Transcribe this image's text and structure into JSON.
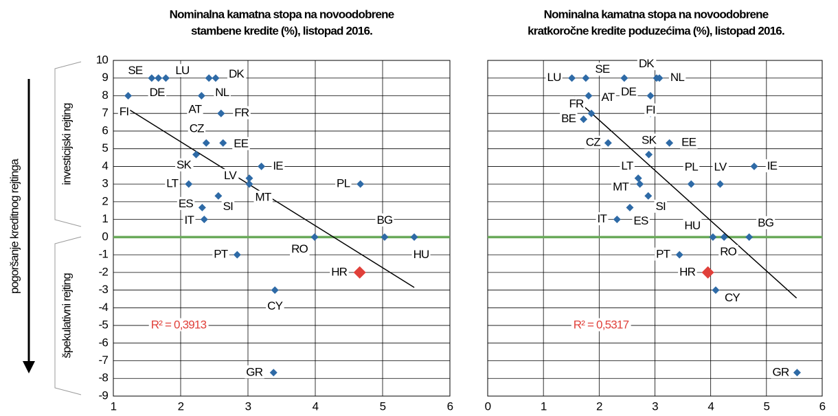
{
  "annotations": {
    "axis_arrow": "pogoršanje kreditnog rejtinga",
    "upper": "investicijski rejting",
    "lower": "špekulativni rejting"
  },
  "chart_data": [
    {
      "type": "scatter",
      "title": [
        "Nominalna kamatna stopa na novoodobrene",
        "stambene kredite (%), listopad 2016."
      ],
      "x": [
        1.57,
        1.67,
        1.78,
        2.42,
        2.52,
        1.22,
        2.31,
        2.6,
        2.6,
        2.38,
        2.63,
        2.23,
        3.2,
        2.12,
        3.02,
        3.02,
        4.67,
        2.32,
        2.56,
        2.35,
        3.99,
        5.03,
        5.47,
        2.84,
        4.66,
        3.4,
        3.38
      ],
      "y": [
        9,
        9,
        9,
        9,
        9,
        8,
        8,
        7,
        7,
        5.33,
        5.33,
        4.67,
        4,
        3,
        3.33,
        3,
        3,
        1.67,
        2.33,
        1,
        0,
        0,
        0,
        -1,
        -2,
        -3,
        -7.67
      ],
      "labels": [
        "SE",
        "DE",
        "LU",
        null,
        "DK",
        "FI",
        "NL",
        "AT",
        "FR",
        "CZ",
        "EE",
        "SK",
        "IE",
        "LT",
        "LV",
        "MT",
        "PL",
        "ES",
        "SI",
        "IT",
        "RO",
        "BG",
        "HU",
        "PT",
        "HR",
        "CY",
        "GR"
      ],
      "color": "#2e6aa6",
      "highlight_index": 24,
      "highlight_color": "#e0403a",
      "trendline": {
        "x": [
          1.22,
          5.47
        ],
        "y": [
          7.25,
          -2.85
        ],
        "color": "#000"
      },
      "r2_label": "R² = 0,3913",
      "r2_color": "#e0403a",
      "reference_line": {
        "y": 0,
        "color": "#6aaa5a"
      },
      "xlim": [
        1,
        6
      ],
      "xticks": [
        1,
        2,
        3,
        4,
        5,
        6
      ],
      "ylim": [
        -9,
        10
      ],
      "yticks": [
        -9,
        -8,
        -7,
        -6,
        -5,
        -4,
        -3,
        -2,
        -1,
        0,
        1,
        2,
        3,
        4,
        5,
        6,
        7,
        8,
        9,
        10
      ],
      "grid": true,
      "show_ytick_labels": true
    },
    {
      "type": "scatter",
      "title": [
        "Nominalna kamatna stopa na novoodobrene",
        "kratkoročne kredite poduzećima (%), listopad 2016."
      ],
      "x": [
        1.51,
        1.76,
        2.45,
        3.03,
        3.08,
        1.81,
        2.92,
        1.86,
        2.92,
        1.72,
        2.16,
        2.89,
        3.26,
        2.5,
        2.7,
        2.73,
        3.65,
        4.17,
        4.78,
        2.88,
        2.55,
        2.32,
        4.04,
        4.24,
        4.69,
        3.44,
        3.95,
        4.09,
        5.55
      ],
      "y": [
        9,
        9,
        9,
        9,
        9,
        8,
        8,
        7,
        7,
        6.67,
        5.33,
        4.67,
        5.33,
        4,
        3.33,
        3,
        3,
        3,
        4,
        2.33,
        1.67,
        1,
        0,
        0,
        0,
        -1,
        -2,
        -3,
        -7.67
      ],
      "labels": [
        "LU",
        "SE",
        "DK",
        "NL",
        null,
        "AT",
        "DE",
        "FR",
        "FI",
        "BE",
        "CZ",
        "SK",
        "EE",
        "LT",
        null,
        "MT",
        "PL",
        "LV",
        "IE",
        "SI",
        "ES",
        "IT",
        "HU",
        "RO",
        "BG",
        "PT",
        "HR",
        "CY",
        "GR"
      ],
      "color": "#2e6aa6",
      "highlight_index": 26,
      "highlight_color": "#e0403a",
      "trendline": {
        "x": [
          1.55,
          5.54
        ],
        "y": [
          7.9,
          -3.45
        ],
        "color": "#000"
      },
      "r2_label": "R² = 0,5317",
      "r2_color": "#e0403a",
      "reference_line": {
        "y": 0,
        "color": "#6aaa5a"
      },
      "xlim": [
        0,
        6
      ],
      "xticks": [
        0,
        1,
        2,
        3,
        4,
        5,
        6
      ],
      "ylim": [
        -9,
        10
      ],
      "yticks": [
        -9,
        -8,
        -7,
        -6,
        -5,
        -4,
        -3,
        -2,
        -1,
        0,
        1,
        2,
        3,
        4,
        5,
        6,
        7,
        8,
        9,
        10
      ],
      "grid": true,
      "show_ytick_labels": false
    }
  ]
}
